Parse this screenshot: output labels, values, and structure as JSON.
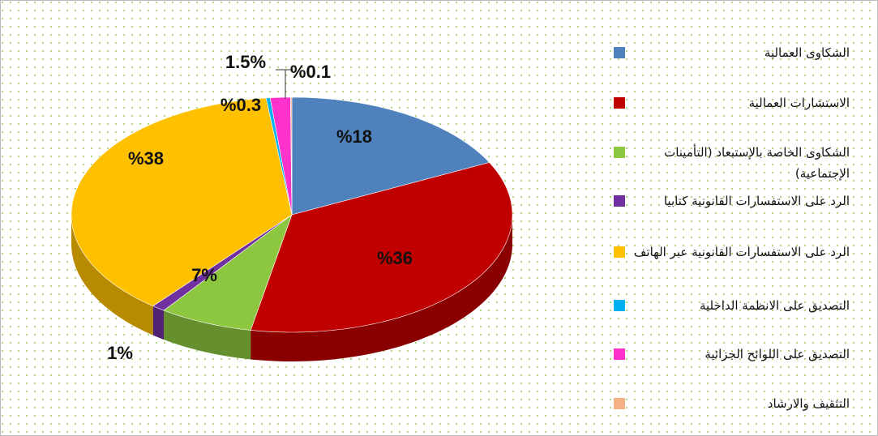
{
  "chart_data": {
    "type": "pie",
    "categories": [
      "الشكاوى العمالية",
      "الاستشارات العمالية",
      "الشكاوى الخاصة بالإستبعاد (التأمينات الإجتماعية)",
      "الرد على الاستفسارات القانونية كتابيا",
      "الرد على الاستفسارات القانونية عبر الهاتف",
      "التصديق على الانظمة الداخلية",
      "التصديق على اللوائح الجزائية",
      "التثقيف والارشاد"
    ],
    "values": [
      18,
      36,
      7,
      1,
      38,
      0.3,
      1.5,
      0.1
    ],
    "value_labels": [
      "%18",
      "%36",
      "7%",
      "1%",
      "%38",
      "%0.3",
      "1.5%",
      "%0.1"
    ],
    "colors": [
      "#4f81bd",
      "#c00000",
      "#8dc63f",
      "#7030a0",
      "#ffc000",
      "#00b0f0",
      "#ff33cc",
      "#f4b183"
    ],
    "legend": "right"
  }
}
